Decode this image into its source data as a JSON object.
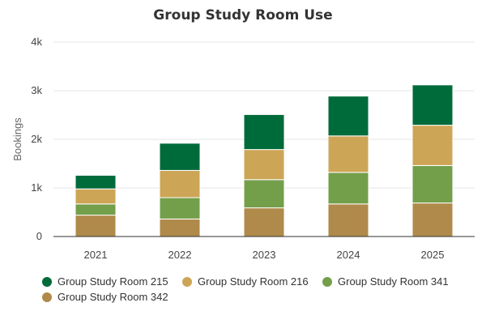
{
  "chart_data": {
    "type": "bar",
    "stacked": true,
    "title": "Group Study Room Use",
    "xlabel": "",
    "ylabel": "Bookings",
    "ylim": [
      0,
      4000
    ],
    "yticks": [
      0,
      1000,
      2000,
      3000,
      4000
    ],
    "ytick_labels": [
      "0",
      "1k",
      "2k",
      "3k",
      "4k"
    ],
    "categories": [
      "2021",
      "2022",
      "2023",
      "2024",
      "2025"
    ],
    "grid": true,
    "legend_position": "bottom",
    "series": [
      {
        "name": "Group Study Room 342",
        "color": "#b08a4a",
        "values": [
          440,
          360,
          590,
          670,
          690
        ]
      },
      {
        "name": "Group Study Room 341",
        "color": "#749f4a",
        "values": [
          230,
          440,
          580,
          650,
          770
        ]
      },
      {
        "name": "Group Study Room 216",
        "color": "#cda556",
        "values": [
          310,
          560,
          620,
          750,
          830
        ]
      },
      {
        "name": "Group Study Room 215",
        "color": "#006b3a",
        "values": [
          280,
          560,
          720,
          820,
          830
        ]
      }
    ],
    "legend_order": [
      "Group Study Room 215",
      "Group Study Room 216",
      "Group Study Room 341",
      "Group Study Room 342"
    ]
  }
}
